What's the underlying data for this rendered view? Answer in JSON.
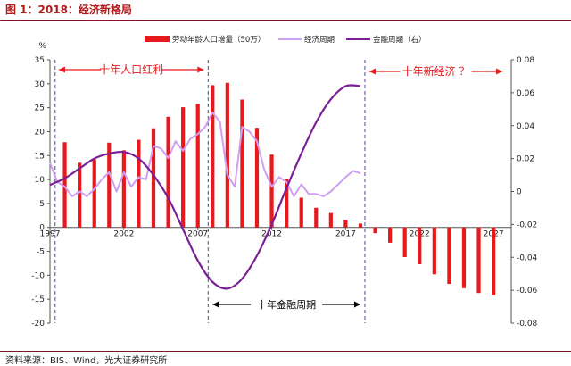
{
  "header": {
    "figure_title": "图 1：2018：经济新格局"
  },
  "footer": {
    "source": "资料来源：BIS、Wind，光大证券研究所"
  },
  "colors": {
    "bar": "#e8191c",
    "econ": "#cf9ff2",
    "fin": "#7a1f96",
    "annotation": "#e8191c",
    "axis": "#3a5a9a",
    "guide": "#5544aa"
  },
  "chart_data": {
    "type": "bar",
    "title": "",
    "xlabel": "",
    "ylabel": "%",
    "ylim": [
      -20,
      35
    ],
    "y2lim": [
      -0.08,
      0.08
    ],
    "yticks": [
      "35",
      "30",
      "25",
      "20",
      "15",
      "10",
      "5",
      "0",
      "-5",
      "-10",
      "-15",
      "-20"
    ],
    "y2ticks": [
      "0.08",
      "0.06",
      "0.04",
      "0.02",
      "0",
      "-0.02",
      "-0.04",
      "-0.06",
      "-0.08"
    ],
    "xticks": [
      "1997",
      "2002",
      "2007",
      "2012",
      "2017",
      "2022",
      "2027"
    ],
    "legend_position": "top",
    "series": [
      {
        "name": "劳动年龄人口增量（50万）",
        "type": "bar",
        "axis": "left",
        "x": [
          1998,
          1999,
          2000,
          2001,
          2002,
          2003,
          2004,
          2005,
          2006,
          2007,
          2008,
          2009,
          2010,
          2011,
          2012,
          2013,
          2014,
          2015,
          2016,
          2017,
          2018,
          2019,
          2020,
          2021,
          2022,
          2023,
          2024,
          2025,
          2026,
          2027
        ],
        "values": [
          17.8,
          13.5,
          14.2,
          17.7,
          16.1,
          18.3,
          20.7,
          23.1,
          25.1,
          25.8,
          29.7,
          30.2,
          26.7,
          20.8,
          15.2,
          10.2,
          6.2,
          4.1,
          3.0,
          1.6,
          0.8,
          -1.2,
          -3.2,
          -6.2,
          -7.7,
          -9.8,
          -11.8,
          -12.7,
          -13.7,
          -14.2
        ]
      },
      {
        "name": "经济周期",
        "type": "line",
        "axis": "left",
        "x": [
          1997,
          1997.5,
          1998,
          1998.5,
          1999,
          1999.5,
          2000,
          2000.5,
          2001,
          2001.5,
          2002,
          2002.5,
          2003,
          2003.5,
          2004,
          2004.5,
          2005,
          2005.5,
          2006,
          2006.5,
          2007,
          2007.5,
          2008,
          2008.5,
          2009,
          2009.5,
          2010,
          2010.5,
          2011,
          2011.5,
          2012,
          2012.5,
          2013,
          2013.5,
          2014,
          2014.5,
          2015,
          2015.5,
          2016,
          2016.5,
          2017,
          2017.5,
          2018
        ],
        "values": [
          13.5,
          9.5,
          8.5,
          6.5,
          7.5,
          6.5,
          8.0,
          10.0,
          11.5,
          7.5,
          11.5,
          8.5,
          10.5,
          10.0,
          17.0,
          16.5,
          14.5,
          18.0,
          16.0,
          18.5,
          19.5,
          21.0,
          24.0,
          22.0,
          11.0,
          8.5,
          21.0,
          20.0,
          18.0,
          12.0,
          8.5,
          10.5,
          9.5,
          6.5,
          9.0,
          7.0,
          7.0,
          6.5,
          7.5,
          9.0,
          10.5,
          11.8,
          11.3
        ]
      },
      {
        "name": "金融周期（右）",
        "type": "line",
        "axis": "right",
        "x": [
          1997,
          1998,
          1999,
          2000,
          2001,
          2002,
          2003,
          2004,
          2005,
          2006,
          2007,
          2008,
          2009,
          2010,
          2011,
          2012,
          2013,
          2014,
          2015,
          2016,
          2017,
          2018
        ],
        "values": [
          0.004,
          0.008,
          0.014,
          0.02,
          0.023,
          0.024,
          0.02,
          0.01,
          -0.004,
          -0.023,
          -0.042,
          -0.055,
          -0.059,
          -0.053,
          -0.039,
          -0.02,
          0.002,
          0.023,
          0.042,
          0.056,
          0.064,
          0.064
        ]
      }
    ],
    "annotations": [
      {
        "text": "十年人口红利",
        "x_range": [
          1997,
          2007
        ]
      },
      {
        "text": "十年新经济 ？",
        "x_range": [
          2018,
          2027
        ]
      },
      {
        "text": "十年金融周期",
        "x_range": [
          2008,
          2018
        ]
      }
    ]
  }
}
